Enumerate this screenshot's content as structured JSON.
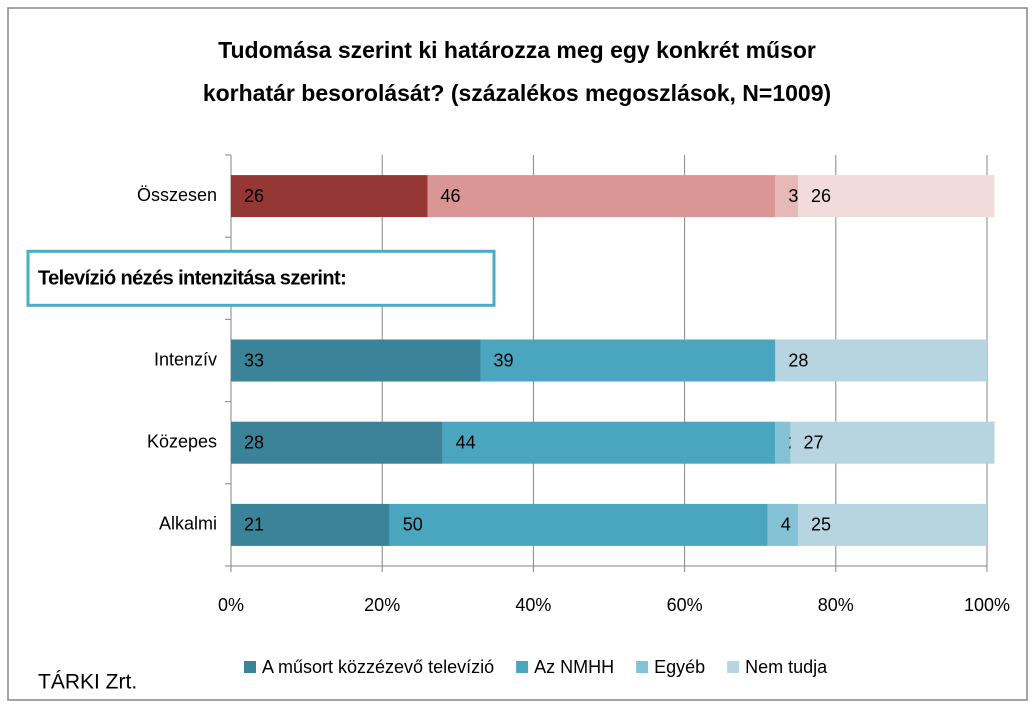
{
  "chart_data": {
    "type": "stacked_barh",
    "title": [
      "Tudomása szerint ki határozza meg egy konkrét műsor",
      "korhatár besorolását? (százalékos megoszlások, N=1009)"
    ],
    "categories": [
      "Összesen",
      null,
      "Intenzív",
      "Közepes",
      "Alkalmi"
    ],
    "annotation": "Televízió nézés intenzitása szerint:",
    "source": "TÁRKI Zrt.",
    "series": [
      {
        "name": "A műsort közzézevő televízió",
        "color": "#3a8399",
        "colors": [
          "#953735",
          null,
          "#3a8399",
          "#3a8399",
          "#3a8399"
        ],
        "values": [
          26,
          null,
          33,
          28,
          21
        ]
      },
      {
        "name": "Az NMHH",
        "color": "#4aa6bf",
        "colors": [
          "#d99694",
          null,
          "#4aa6bf",
          "#4aa6bf",
          "#4aa6bf"
        ],
        "values": [
          46,
          null,
          39,
          44,
          50
        ]
      },
      {
        "name": "Egyéb",
        "color": "#84c3d6",
        "colors": [
          "#e6b9b8",
          null,
          "#84c3d6",
          "#84c3d6",
          "#84c3d6"
        ],
        "values": [
          3,
          null,
          null,
          2,
          4
        ]
      },
      {
        "name": "Nem tudja",
        "color": "#b7d5e0",
        "colors": [
          "#f2dcdb",
          null,
          "#b7d5e0",
          "#b7d5e0",
          "#b7d5e0"
        ],
        "values": [
          26,
          null,
          28,
          27,
          25
        ]
      }
    ],
    "xlim": [
      0,
      100
    ],
    "xticks": [
      {
        "value": 0,
        "label": "0%"
      },
      {
        "value": 20,
        "label": "20%"
      },
      {
        "value": 40,
        "label": "40%"
      },
      {
        "value": 60,
        "label": "60%"
      },
      {
        "value": 80,
        "label": "80%"
      },
      {
        "value": 100,
        "label": "100%"
      }
    ],
    "grid": true
  }
}
